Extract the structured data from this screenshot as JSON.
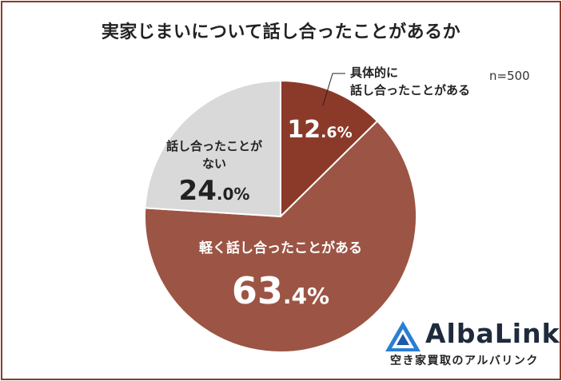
{
  "chart_data": {
    "type": "pie",
    "title": "実家じまいについて話し合ったことがあるか",
    "note": "n=500",
    "slices": [
      {
        "label_lines": [
          "具体的に",
          "話し合ったことがある"
        ],
        "value": 12.6,
        "color": "#8b3a2a"
      },
      {
        "label_lines": [
          "軽く話し合ったことがある"
        ],
        "value": 63.4,
        "color": "#9c5444"
      },
      {
        "label_lines": [
          "話し合ったことが",
          "ない"
        ],
        "value": 24.0,
        "color": "#d9d9d9"
      }
    ]
  },
  "logo": {
    "name": "AlbaLink",
    "tagline": "空き家買取のアルバリンク",
    "color": "#1f2a3c",
    "accent": "#2a7fd4"
  }
}
